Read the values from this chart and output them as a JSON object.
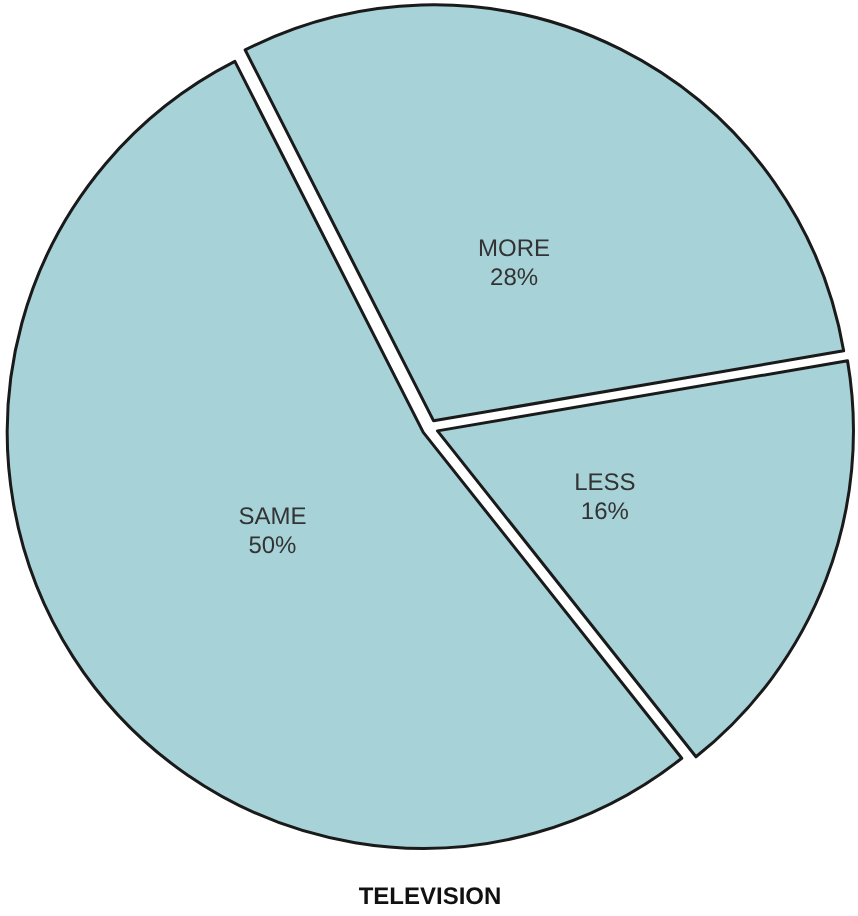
{
  "chart_data": {
    "type": "pie",
    "title": "TELEVISION",
    "categories": [
      "MORE",
      "LESS",
      "SAME"
    ],
    "values": [
      28,
      16,
      50
    ],
    "value_labels": [
      "28%",
      "16%",
      "50%"
    ],
    "colors": [
      "#a6d2d8",
      "#a6d2d8",
      "#a6d2d8"
    ]
  }
}
